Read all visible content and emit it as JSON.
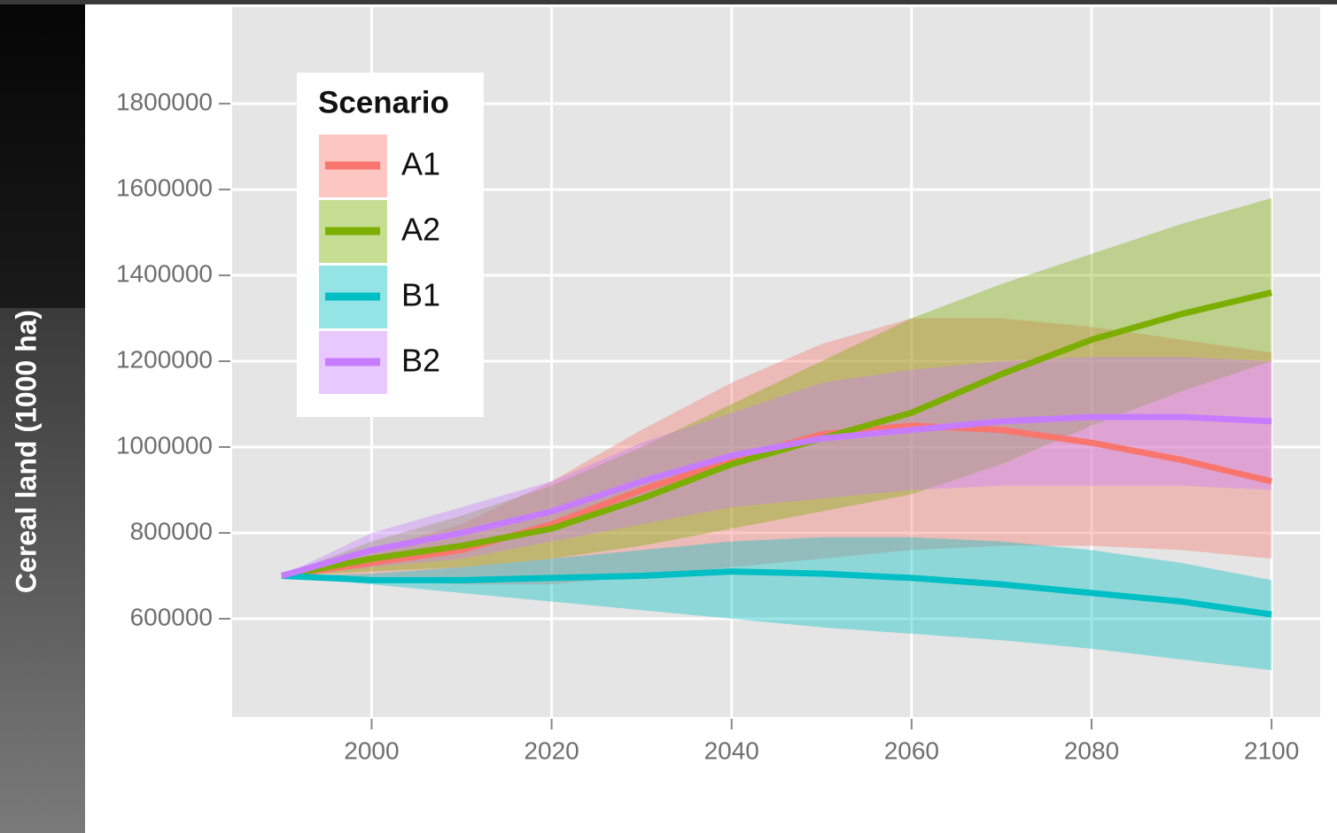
{
  "chart_data": {
    "type": "line",
    "y_label": "Cereal land (1000 ha)",
    "legend_title": "Scenario",
    "x": [
      1990,
      2000,
      2010,
      2020,
      2030,
      2040,
      2050,
      2060,
      2070,
      2080,
      2090,
      2100
    ],
    "series": [
      {
        "name": "A1",
        "color": "#f8766d",
        "values": [
          700000,
          730000,
          760000,
          820000,
          900000,
          970000,
          1030000,
          1050000,
          1040000,
          1010000,
          970000,
          920000
        ],
        "upper": [
          700000,
          760000,
          820000,
          920000,
          1040000,
          1150000,
          1240000,
          1300000,
          1300000,
          1280000,
          1250000,
          1220000
        ],
        "lower": [
          700000,
          690000,
          680000,
          680000,
          700000,
          720000,
          740000,
          760000,
          770000,
          770000,
          760000,
          740000
        ]
      },
      {
        "name": "A2",
        "color": "#7cae00",
        "values": [
          700000,
          740000,
          770000,
          810000,
          880000,
          960000,
          1020000,
          1080000,
          1170000,
          1250000,
          1310000,
          1360000
        ],
        "upper": [
          700000,
          780000,
          840000,
          910000,
          1000000,
          1100000,
          1200000,
          1300000,
          1380000,
          1450000,
          1520000,
          1580000
        ],
        "lower": [
          700000,
          710000,
          720000,
          740000,
          770000,
          810000,
          850000,
          890000,
          960000,
          1050000,
          1130000,
          1200000
        ]
      },
      {
        "name": "B1",
        "color": "#00bfc4",
        "values": [
          700000,
          690000,
          690000,
          695000,
          700000,
          710000,
          705000,
          695000,
          680000,
          660000,
          640000,
          610000
        ],
        "upper": [
          700000,
          705000,
          720000,
          740000,
          760000,
          780000,
          790000,
          790000,
          780000,
          760000,
          730000,
          690000
        ],
        "lower": [
          700000,
          680000,
          660000,
          640000,
          620000,
          600000,
          580000,
          565000,
          550000,
          530000,
          505000,
          480000
        ]
      },
      {
        "name": "B2",
        "color": "#c77cff",
        "values": [
          700000,
          760000,
          800000,
          850000,
          920000,
          980000,
          1020000,
          1040000,
          1060000,
          1070000,
          1070000,
          1060000
        ],
        "upper": [
          700000,
          800000,
          860000,
          920000,
          1010000,
          1080000,
          1150000,
          1180000,
          1200000,
          1210000,
          1210000,
          1200000
        ],
        "lower": [
          700000,
          720000,
          740000,
          780000,
          820000,
          860000,
          880000,
          900000,
          910000,
          910000,
          910000,
          900000
        ]
      }
    ],
    "xlim": [
      1984.5,
      2105.4
    ],
    "ylim": [
      371000,
      2025000
    ],
    "xticks": [
      2000,
      2020,
      2040,
      2060,
      2080,
      2100
    ],
    "yticks": [
      600000,
      800000,
      1000000,
      1200000,
      1400000,
      1600000,
      1800000
    ],
    "grid": true
  }
}
